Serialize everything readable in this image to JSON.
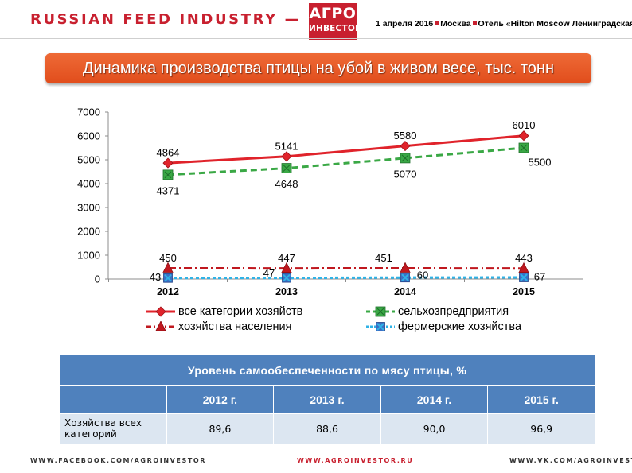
{
  "header": {
    "title": "RUSSIAN FEED INDUSTRY — 2016",
    "logo_line1": "АГРО",
    "logo_line2": "ИНВЕСТОР",
    "event_date": "1 апреля 2016",
    "event_city": "Москва",
    "event_venue": "Отель «Hilton Moscow Ленинградская»"
  },
  "colors": {
    "brand_red": "#c8202f",
    "banner_orange": "#e8582a",
    "table_blue": "#4f81bd",
    "table_light": "#dce6f1"
  },
  "chart_data": {
    "type": "line",
    "title": "Динамика производства птицы на убой в живом весе, тыс. тонн",
    "categories": [
      "2012",
      "2013",
      "2014",
      "2015"
    ],
    "ylim": [
      0,
      7000
    ],
    "yticks": [
      "0",
      "1000",
      "2000",
      "3000",
      "4000",
      "5000",
      "6000",
      "7000"
    ],
    "grid": false,
    "legend_position": "bottom",
    "series": [
      {
        "name": "все категории хозяйств",
        "values": [
          4864,
          5141,
          5580,
          6010
        ],
        "color": "#e0232b",
        "dash": "none",
        "marker": "diamond",
        "labels": [
          "4864",
          "5141",
          "5580",
          "6010"
        ]
      },
      {
        "name": "сельхозпредприятия",
        "values": [
          4371,
          4648,
          5070,
          5500
        ],
        "color": "#3aa845",
        "dash": "8,5",
        "marker": "square",
        "labels": [
          "4371",
          "4648",
          "5070",
          "5500"
        ]
      },
      {
        "name": "хозяйства населения",
        "values": [
          450,
          447,
          451,
          443
        ],
        "color": "#c0181f",
        "dash": "10,4,2,4",
        "marker": "triangle",
        "labels": [
          "450",
          "447",
          "451",
          "443"
        ]
      },
      {
        "name": "фермерские хозяйства",
        "values": [
          43,
          47,
          60,
          67
        ],
        "color": "#2fb2e6",
        "dash": "4,3",
        "marker": "xsquare",
        "labels": [
          "43",
          "47",
          "60",
          "67"
        ]
      }
    ]
  },
  "table": {
    "title": "Уровень самообеспеченности по мясу птицы, %",
    "headers": [
      "",
      "2012 г.",
      "2013 г.",
      "2014 г.",
      "2015 г."
    ],
    "rows": [
      {
        "label": "Хозяйства всех категорий",
        "values": [
          "89,6",
          "88,6",
          "90,0",
          "96,9"
        ]
      }
    ]
  },
  "footer": {
    "facebook": "WWW.FACEBOOK.COM/AGROINVESTOR",
    "site": "WWW.AGROINVESTOR.RU",
    "vk": "WWW.VK.COM/AGROINVESTOR"
  }
}
